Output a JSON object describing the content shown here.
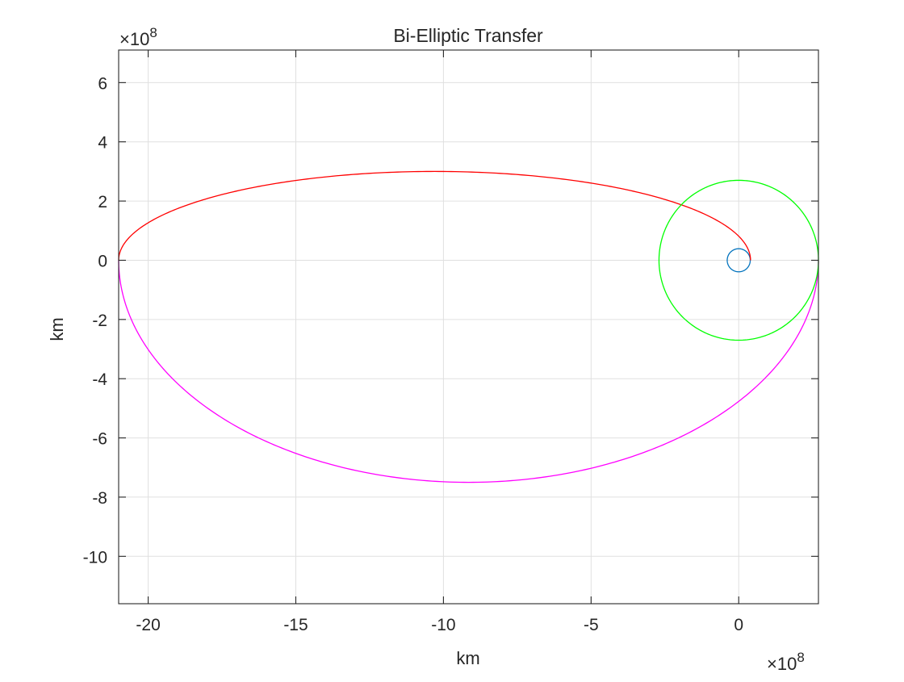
{
  "chart_data": {
    "type": "line",
    "title": "Bi-Elliptic Transfer",
    "xlabel": "km",
    "ylabel": "km",
    "x_exponent_base": "×10",
    "x_exponent_power": "8",
    "y_exponent_base": "×10",
    "y_exponent_power": "8",
    "xlim": [
      -21.0,
      2.7
    ],
    "ylim": [
      -11.6,
      7.1
    ],
    "xticks": [
      -20,
      -15,
      -10,
      -5,
      0
    ],
    "xtick_labels": [
      "-20",
      "-15",
      "-10",
      "-5",
      "0"
    ],
    "yticks": [
      -10,
      -8,
      -6,
      -4,
      -2,
      0,
      2,
      4,
      6
    ],
    "ytick_labels": [
      "-10",
      "-8",
      "-6",
      "-4",
      "-2",
      "0",
      "2",
      "4",
      "6"
    ],
    "grid": true,
    "box": true,
    "series": [
      {
        "kind": "circle",
        "center": [
          0,
          0
        ],
        "radius": 0.39,
        "color": "#0072BD",
        "x": [
          0.39,
          0.276,
          0,
          -0.276,
          -0.39,
          -0.276,
          0,
          0.276,
          0.39
        ],
        "y": [
          0,
          0.276,
          0.39,
          0.276,
          0,
          -0.276,
          -0.39,
          -0.276,
          0
        ]
      },
      {
        "kind": "upper-half-ellipse",
        "center": [
          -10.3,
          0
        ],
        "semi_axes": [
          10.7,
          3.0
        ],
        "color": "#FF0000",
        "x": [
          0.4,
          -2.4,
          -10.3,
          -18.2,
          -21.0
        ],
        "y": [
          0,
          2.07,
          3.0,
          2.07,
          0
        ]
      },
      {
        "kind": "lower-half-ellipse",
        "center": [
          -9.15,
          0
        ],
        "semi_axes": [
          11.85,
          7.5
        ],
        "color": "#FF00FF",
        "x": [
          -21.0,
          -17.6,
          -9.15,
          -0.77,
          2.7
        ],
        "y": [
          0,
          -5.3,
          -7.5,
          -5.3,
          0
        ]
      },
      {
        "kind": "circle",
        "center": [
          0,
          0
        ],
        "radius": 2.7,
        "color": "#00FF00",
        "x": [
          2.7,
          1.91,
          0,
          -1.91,
          -2.7,
          -1.91,
          0,
          1.91,
          2.7
        ],
        "y": [
          0,
          1.91,
          2.7,
          1.91,
          0,
          -1.91,
          -2.7,
          -1.91,
          0
        ]
      }
    ]
  }
}
